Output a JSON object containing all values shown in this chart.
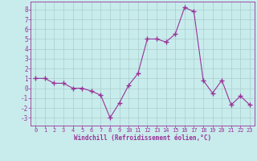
{
  "x": [
    0,
    1,
    2,
    3,
    4,
    5,
    6,
    7,
    8,
    9,
    10,
    11,
    12,
    13,
    14,
    15,
    16,
    17,
    18,
    19,
    20,
    21,
    22,
    23
  ],
  "y": [
    1.0,
    1.0,
    0.5,
    0.5,
    0.0,
    0.0,
    -0.3,
    -0.7,
    -3.0,
    -1.5,
    0.3,
    1.5,
    5.0,
    5.0,
    4.7,
    5.5,
    8.2,
    7.8,
    0.8,
    -0.5,
    0.8,
    -1.7,
    -0.8,
    -1.7
  ],
  "line_color": "#993399",
  "marker": "+",
  "marker_size": 4,
  "bg_color": "#c8ecec",
  "grid_color": "#aacccc",
  "xlabel": "Windchill (Refroidissement éolien,°C)",
  "xlabel_color": "#993399",
  "tick_color": "#993399",
  "spine_color": "#993399",
  "ylim": [
    -3.8,
    8.8
  ],
  "xlim": [
    -0.5,
    23.5
  ],
  "yticks": [
    -3,
    -2,
    -1,
    0,
    1,
    2,
    3,
    4,
    5,
    6,
    7,
    8
  ],
  "xticks": [
    0,
    1,
    2,
    3,
    4,
    5,
    6,
    7,
    8,
    9,
    10,
    11,
    12,
    13,
    14,
    15,
    16,
    17,
    18,
    19,
    20,
    21,
    22,
    23
  ],
  "figsize": [
    3.2,
    2.0
  ],
  "dpi": 100
}
